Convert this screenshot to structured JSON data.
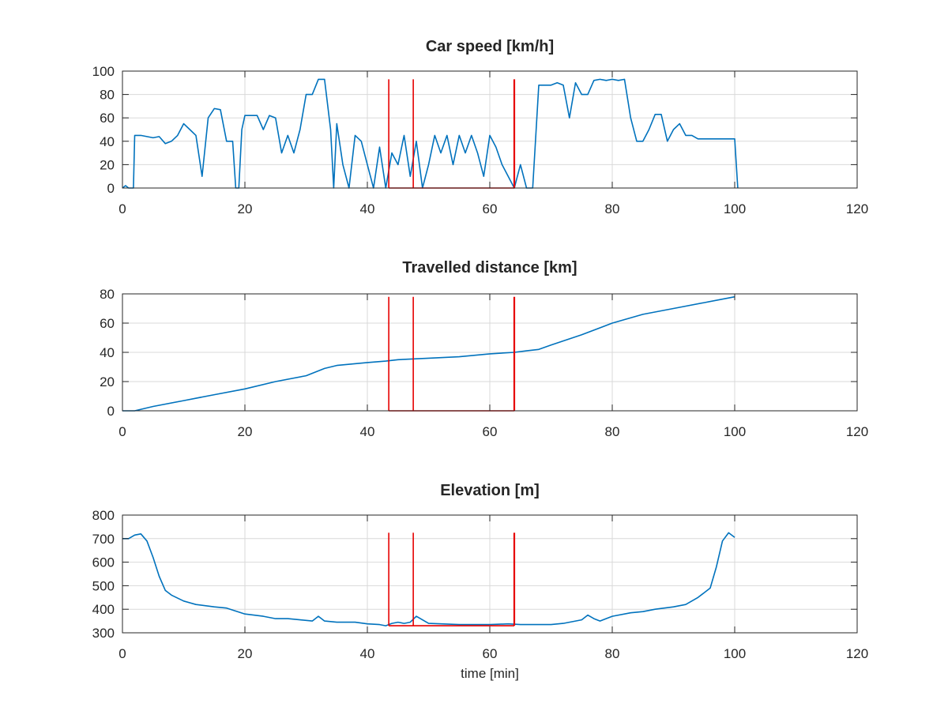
{
  "figure": {
    "colors": {
      "series": "#0072bd",
      "marker": "#e60000",
      "grid": "#d9d9d9",
      "axis": "#262626"
    }
  },
  "chart_data": [
    {
      "type": "line",
      "title": "Car speed [km/h]",
      "xlabel": "",
      "ylabel": "",
      "xlim": [
        0,
        120
      ],
      "ylim": [
        0,
        100
      ],
      "xticks": [
        0,
        20,
        40,
        60,
        80,
        100,
        120
      ],
      "yticks": [
        0,
        20,
        40,
        60,
        80,
        100
      ],
      "grid": true,
      "series": [
        {
          "x": [
            0,
            0.5,
            1,
            1.5,
            1.8,
            2,
            3,
            5,
            6,
            7,
            8,
            9,
            10,
            11,
            12,
            13,
            14,
            15,
            16,
            17,
            18,
            18.5,
            19,
            19.5,
            20,
            21,
            22,
            23,
            24,
            25,
            26,
            27,
            28,
            29,
            30,
            31,
            32,
            33,
            34,
            34.5,
            35,
            36,
            37,
            38,
            39,
            40,
            41,
            42,
            43,
            44,
            45,
            46,
            47,
            48,
            49,
            50,
            51,
            52,
            53,
            54,
            55,
            56,
            57,
            58,
            59,
            60,
            61,
            62,
            63,
            64,
            65,
            66,
            67,
            68,
            69,
            70,
            71,
            72,
            73,
            74,
            75,
            76,
            77,
            78,
            79,
            80,
            81,
            82,
            83,
            84,
            85,
            86,
            87,
            88,
            89,
            90,
            91,
            92,
            93,
            94,
            95,
            96,
            97,
            98,
            99,
            100,
            100.5
          ],
          "y": [
            0,
            2,
            0,
            0,
            0,
            45,
            45,
            43,
            44,
            38,
            40,
            45,
            55,
            50,
            45,
            10,
            60,
            68,
            67,
            40,
            40,
            0,
            0,
            50,
            62,
            62,
            62,
            50,
            62,
            60,
            30,
            45,
            30,
            50,
            80,
            80,
            93,
            93,
            50,
            0,
            55,
            20,
            0,
            45,
            40,
            20,
            0,
            35,
            0,
            30,
            20,
            45,
            10,
            40,
            0,
            20,
            45,
            30,
            45,
            20,
            45,
            30,
            45,
            30,
            10,
            45,
            35,
            20,
            10,
            0,
            20,
            0,
            0,
            88,
            88,
            88,
            90,
            88,
            60,
            90,
            80,
            80,
            92,
            93,
            92,
            93,
            92,
            93,
            60,
            40,
            40,
            50,
            63,
            63,
            40,
            50,
            55,
            45,
            45,
            42,
            42,
            42,
            42,
            42,
            42,
            42,
            0
          ]
        }
      ]
    },
    {
      "type": "line",
      "title": "Travelled distance [km]",
      "xlabel": "",
      "ylabel": "",
      "xlim": [
        0,
        120
      ],
      "ylim": [
        0,
        80
      ],
      "xticks": [
        0,
        20,
        40,
        60,
        80,
        100,
        120
      ],
      "yticks": [
        0,
        20,
        40,
        60,
        80
      ],
      "grid": true,
      "series": [
        {
          "x": [
            0,
            2,
            5,
            10,
            15,
            20,
            25,
            30,
            33,
            35,
            40,
            43,
            45,
            50,
            55,
            60,
            64,
            66,
            68,
            70,
            75,
            80,
            85,
            90,
            95,
            100
          ],
          "y": [
            0,
            0,
            3,
            7,
            11,
            15,
            20,
            24,
            29,
            31,
            33,
            34,
            35,
            36,
            37,
            39,
            40,
            41,
            42,
            45,
            52,
            60,
            66,
            70,
            74,
            78
          ]
        }
      ]
    },
    {
      "type": "line",
      "title": "Elevation [m]",
      "xlabel": "time [min]",
      "ylabel": "",
      "xlim": [
        0,
        120
      ],
      "ylim": [
        300,
        800
      ],
      "xticks": [
        0,
        20,
        40,
        60,
        80,
        100,
        120
      ],
      "yticks": [
        300,
        400,
        500,
        600,
        700,
        800
      ],
      "grid": true,
      "series": [
        {
          "x": [
            0,
            1,
            2,
            3,
            4,
            5,
            6,
            7,
            8,
            10,
            12,
            15,
            17,
            20,
            23,
            25,
            27,
            29,
            31,
            32,
            33,
            35,
            38,
            40,
            42,
            43,
            44,
            45,
            46,
            47,
            48,
            50,
            55,
            60,
            63,
            65,
            68,
            70,
            72,
            75,
            76,
            77,
            78,
            80,
            83,
            85,
            87,
            90,
            92,
            94,
            96,
            97,
            98,
            99,
            100
          ],
          "y": [
            700,
            700,
            715,
            720,
            690,
            620,
            540,
            480,
            460,
            435,
            420,
            410,
            405,
            380,
            370,
            360,
            360,
            355,
            350,
            370,
            350,
            345,
            345,
            338,
            335,
            330,
            340,
            345,
            340,
            345,
            370,
            340,
            335,
            335,
            338,
            335,
            335,
            335,
            340,
            355,
            375,
            360,
            350,
            370,
            385,
            390,
            400,
            410,
            420,
            450,
            490,
            580,
            690,
            725,
            705
          ]
        }
      ]
    }
  ],
  "markers": {
    "x": [
      43.5,
      47.5,
      64
    ],
    "top": [
      93,
      78,
      725
    ]
  }
}
